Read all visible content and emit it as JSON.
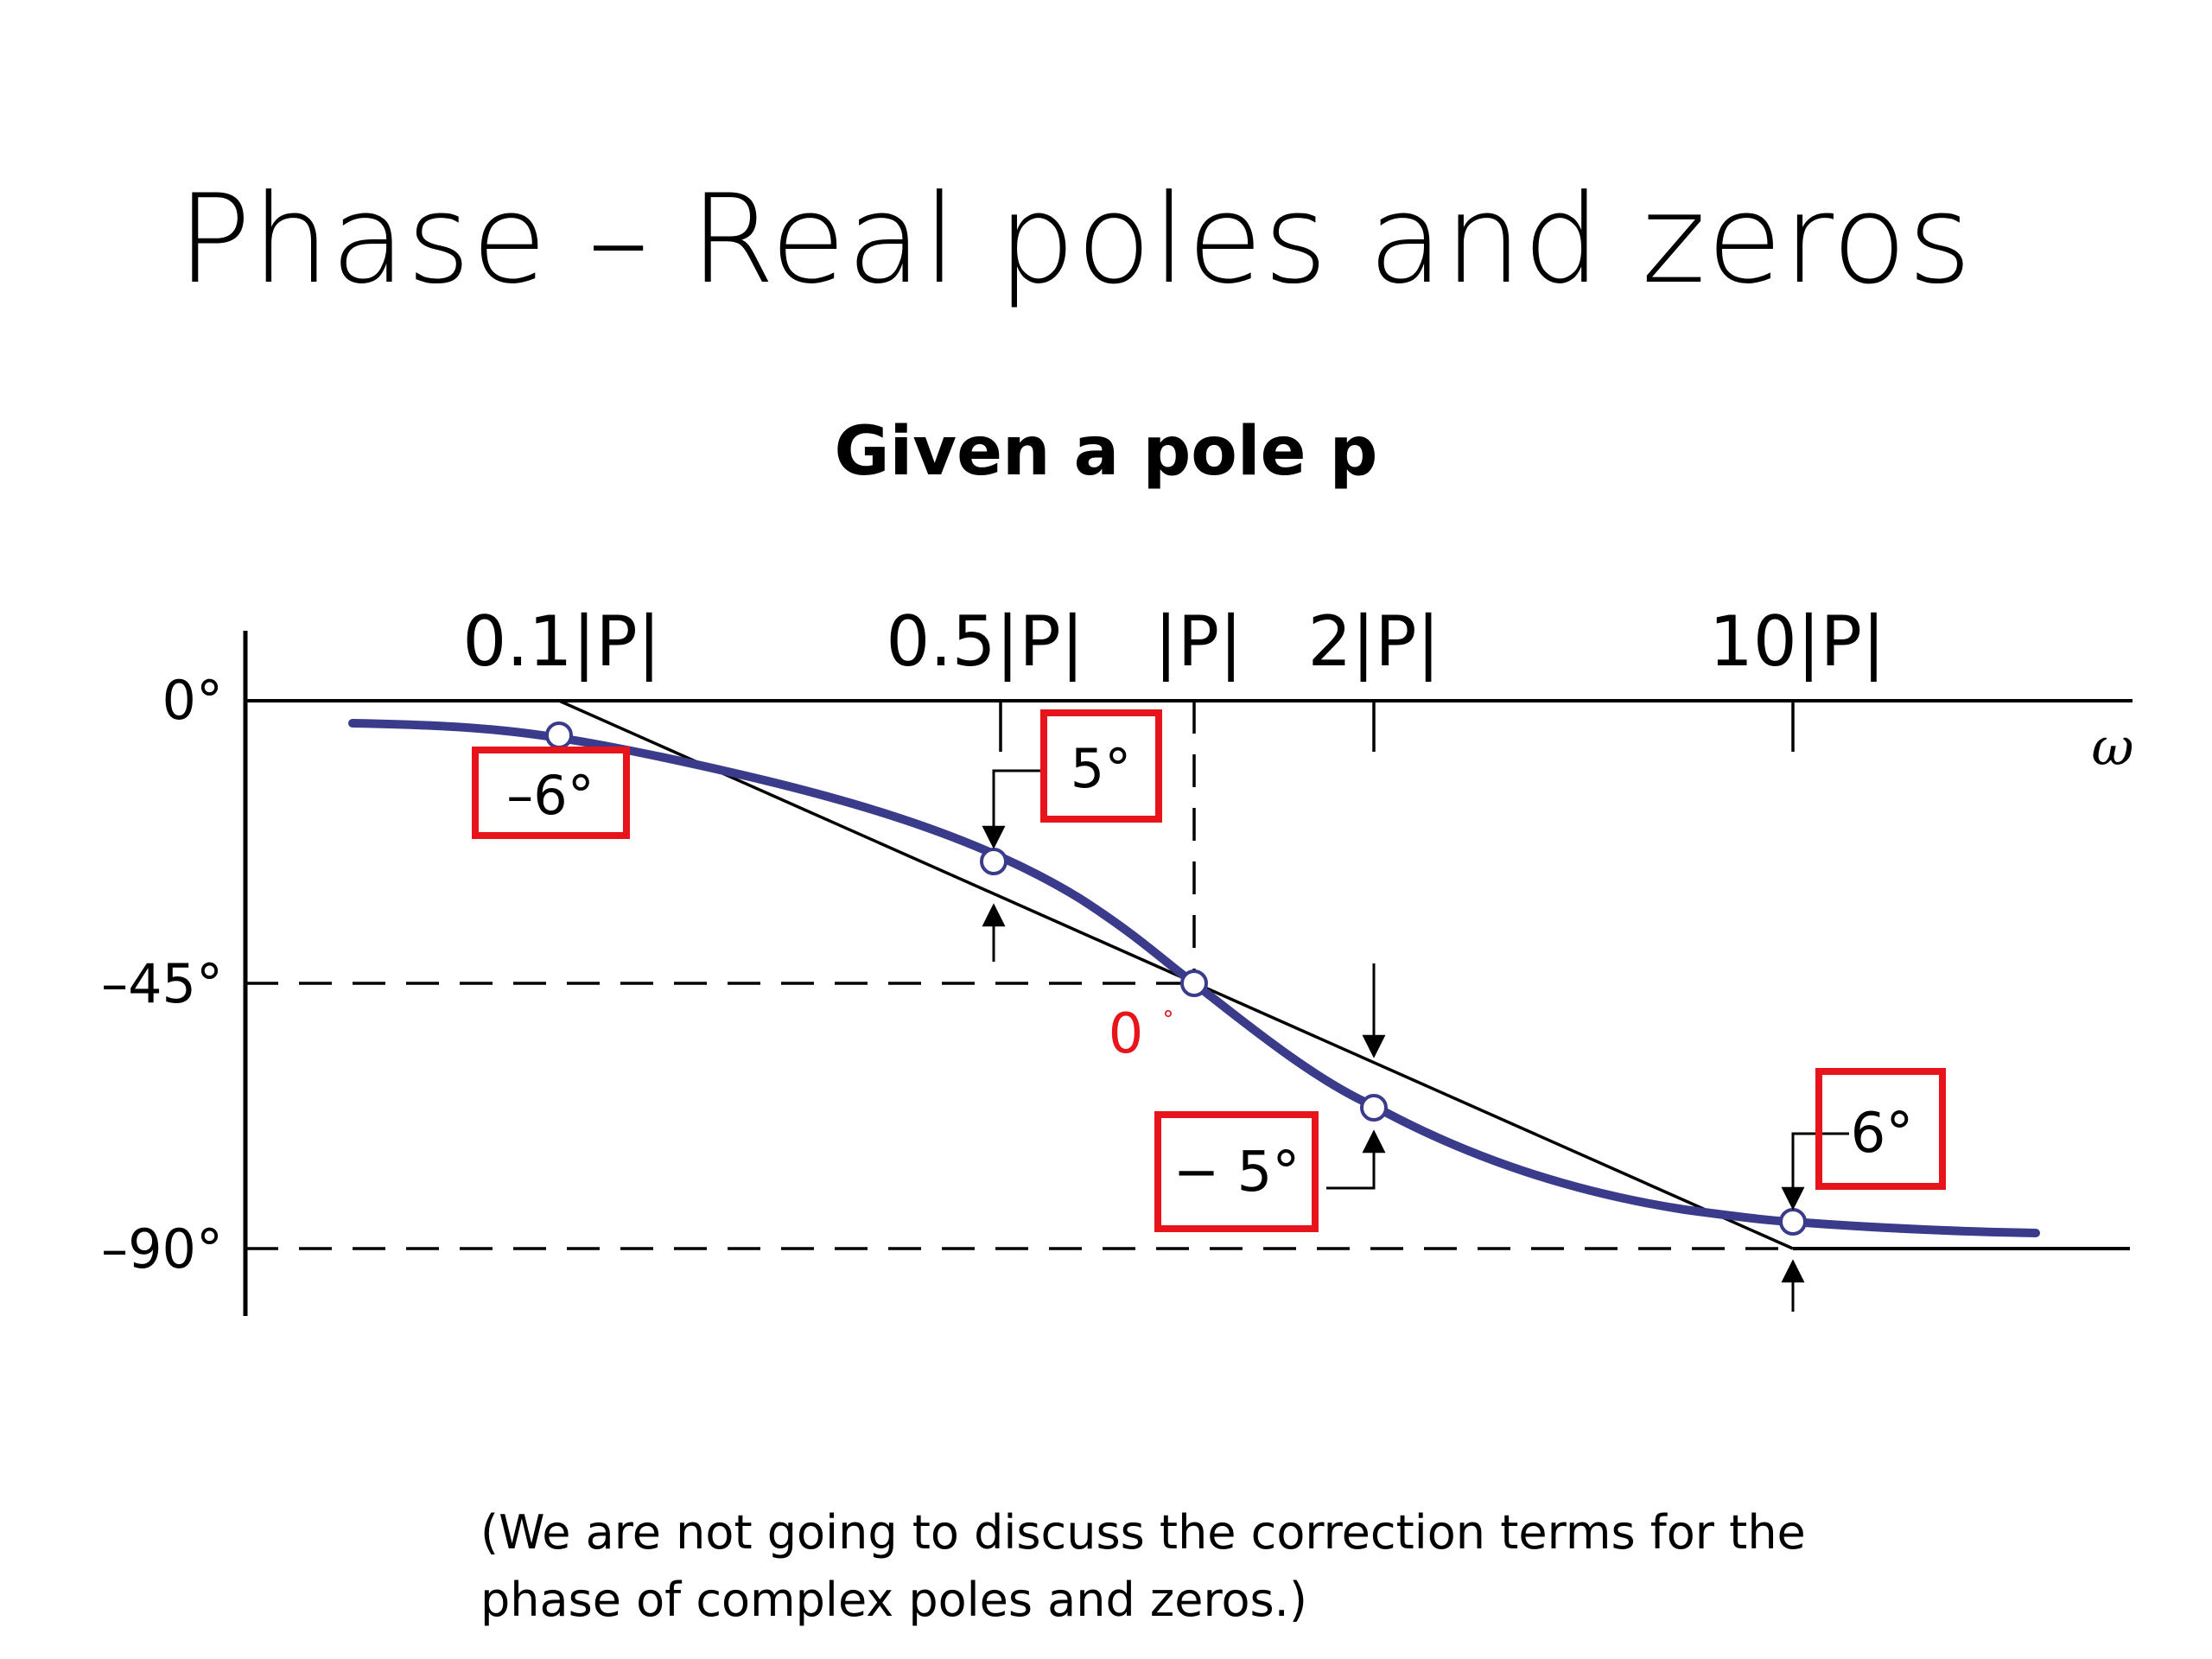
{
  "title": "Phase – Real poles and zeros",
  "subtitle": "Given a pole p",
  "axis": {
    "x_symbol": "ω",
    "y_ticks": [
      "0°",
      "–45°",
      "–90°"
    ],
    "x_ticks": [
      "0.1|P|",
      "0.5|P|",
      "|P|",
      "2|P|",
      "10|P|"
    ]
  },
  "corrections": [
    {
      "label": "–6°",
      "boxed": true
    },
    {
      "label": "5°",
      "boxed": true
    },
    {
      "label": "0",
      "degree": "°",
      "boxed": false
    },
    {
      "label": "− 5°",
      "boxed": true
    },
    {
      "label": "6°",
      "boxed": true
    }
  ],
  "footnote": {
    "line1": "(We are not going to discuss the correction terms for the",
    "line2": "phase of complex poles and zeros.)"
  },
  "colors": {
    "curve": "#3b3b8c",
    "highlight": "#e8141c",
    "ink": "#000000"
  }
}
